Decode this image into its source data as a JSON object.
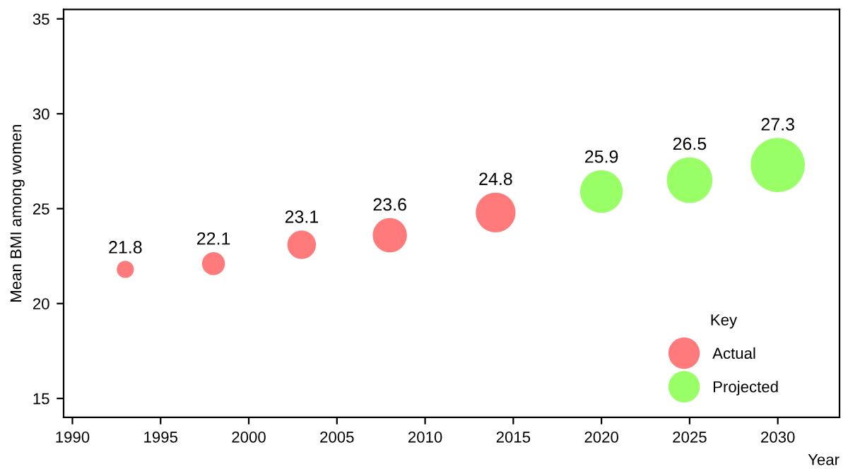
{
  "chart_data": {
    "type": "bubble",
    "xlabel": "Year",
    "ylabel": "Mean BMI among women",
    "legend_title": "Key",
    "legend": "bottom right",
    "series": [
      {
        "name": "Actual",
        "color": "#ff7b7b",
        "x": [
          1993,
          1998,
          2003,
          2008,
          2014
        ],
        "values": [
          21.8,
          22.1,
          23.1,
          23.6,
          24.8
        ],
        "sizes": [
          0.1,
          0.18,
          0.28,
          0.4,
          0.54
        ]
      },
      {
        "name": "Projected",
        "color": "#99ff66",
        "x": [
          2020,
          2025,
          2030
        ],
        "values": [
          25.9,
          26.5,
          27.3
        ],
        "sizes": [
          0.62,
          0.71,
          1
        ]
      }
    ],
    "data_labels": true,
    "xlim": [
      1989.5,
      2033.5
    ],
    "ylim": [
      14,
      35.5
    ],
    "xticks": [
      1990,
      1995,
      2000,
      2005,
      2010,
      2015,
      2020,
      2025,
      2030
    ],
    "yticks": [
      15,
      20,
      25,
      30,
      35
    ],
    "grid": false
  }
}
